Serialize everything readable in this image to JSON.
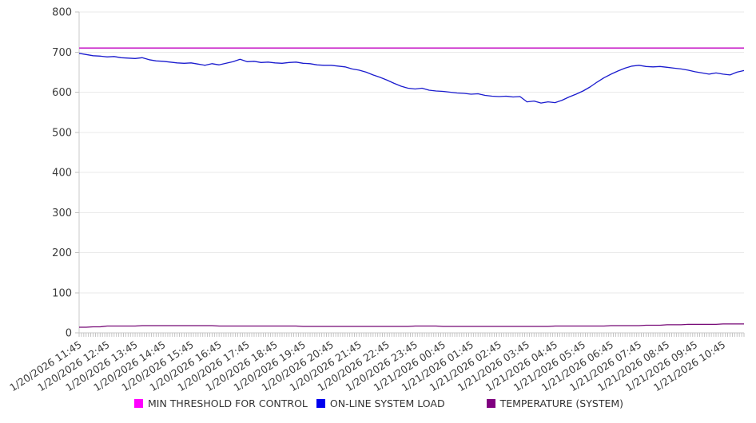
{
  "chart_data": {
    "type": "line",
    "title": "",
    "grid": "horizontal",
    "legend_position": "bottom",
    "y_axis": {
      "min": 0,
      "max": 800,
      "step": 100,
      "ticks": [
        0,
        100,
        200,
        300,
        400,
        500,
        600,
        700,
        800
      ]
    },
    "x_axis": {
      "labels": [
        "1/20/2026 11:45",
        "1/20/2026 12:45",
        "1/20/2026 13:45",
        "1/20/2026 14:45",
        "1/20/2026 15:45",
        "1/20/2026 16:45",
        "1/20/2026 17:45",
        "1/20/2026 18:45",
        "1/20/2026 19:45",
        "1/20/2026 20:45",
        "1/20/2026 21:45",
        "1/20/2026 22:45",
        "1/20/2026 23:45",
        "1/21/2026 00:45",
        "1/21/2026 01:45",
        "1/21/2026 02:45",
        "1/21/2026 03:45",
        "1/21/2026 04:45",
        "1/21/2026 05:45",
        "1/21/2026 06:45",
        "1/21/2026 07:45",
        "1/21/2026 08:45",
        "1/21/2026 09:45",
        "1/21/2026 10:45"
      ],
      "points_per_hour": 4,
      "label_rotation_deg": -33
    },
    "series": [
      {
        "name": "MIN THRESHOLD FOR CONTROL",
        "kind": "constant",
        "value": 710,
        "line_color": "#cc2fcc",
        "swatch_color": "#ff00ff"
      },
      {
        "name": "ON-LINE SYSTEM LOAD",
        "kind": "line",
        "line_color": "#1a1bce",
        "swatch_color": "#0000ee",
        "values": [
          697,
          694,
          691,
          690,
          688,
          689,
          686,
          685,
          684,
          686,
          681,
          678,
          677,
          675,
          673,
          672,
          673,
          670,
          667,
          671,
          668,
          672,
          676,
          682,
          676,
          677,
          674,
          675,
          673,
          672,
          674,
          675,
          672,
          671,
          668,
          667,
          667,
          665,
          663,
          658,
          655,
          650,
          643,
          637,
          630,
          622,
          615,
          610,
          608,
          610,
          605,
          603,
          602,
          600,
          598,
          597,
          595,
          596,
          592,
          590,
          589,
          590,
          588,
          589,
          576,
          578,
          573,
          576,
          574,
          580,
          588,
          595,
          603,
          613,
          625,
          636,
          645,
          653,
          660,
          665,
          667,
          664,
          663,
          664,
          662,
          660,
          658,
          655,
          651,
          648,
          645,
          648,
          645,
          643,
          650,
          654
        ]
      },
      {
        "name": "TEMPERATURE (SYSTEM)",
        "kind": "line",
        "line_color": "#750775",
        "swatch_color": "#800080",
        "values": [
          14,
          14,
          15,
          15,
          17,
          17,
          17,
          17,
          17,
          18,
          18,
          18,
          18,
          18,
          18,
          18,
          18,
          18,
          18,
          18,
          17,
          17,
          17,
          17,
          17,
          17,
          17,
          17,
          17,
          17,
          17,
          17,
          16,
          16,
          16,
          16,
          16,
          16,
          16,
          16,
          16,
          16,
          16,
          16,
          16,
          16,
          16,
          16,
          17,
          17,
          17,
          17,
          16,
          16,
          16,
          16,
          16,
          16,
          16,
          16,
          16,
          16,
          16,
          16,
          16,
          16,
          16,
          16,
          17,
          17,
          17,
          17,
          17,
          17,
          17,
          17,
          18,
          18,
          18,
          18,
          18,
          19,
          19,
          19,
          20,
          20,
          20,
          21,
          21,
          21,
          21,
          21,
          22,
          22,
          22,
          22
        ]
      }
    ]
  }
}
